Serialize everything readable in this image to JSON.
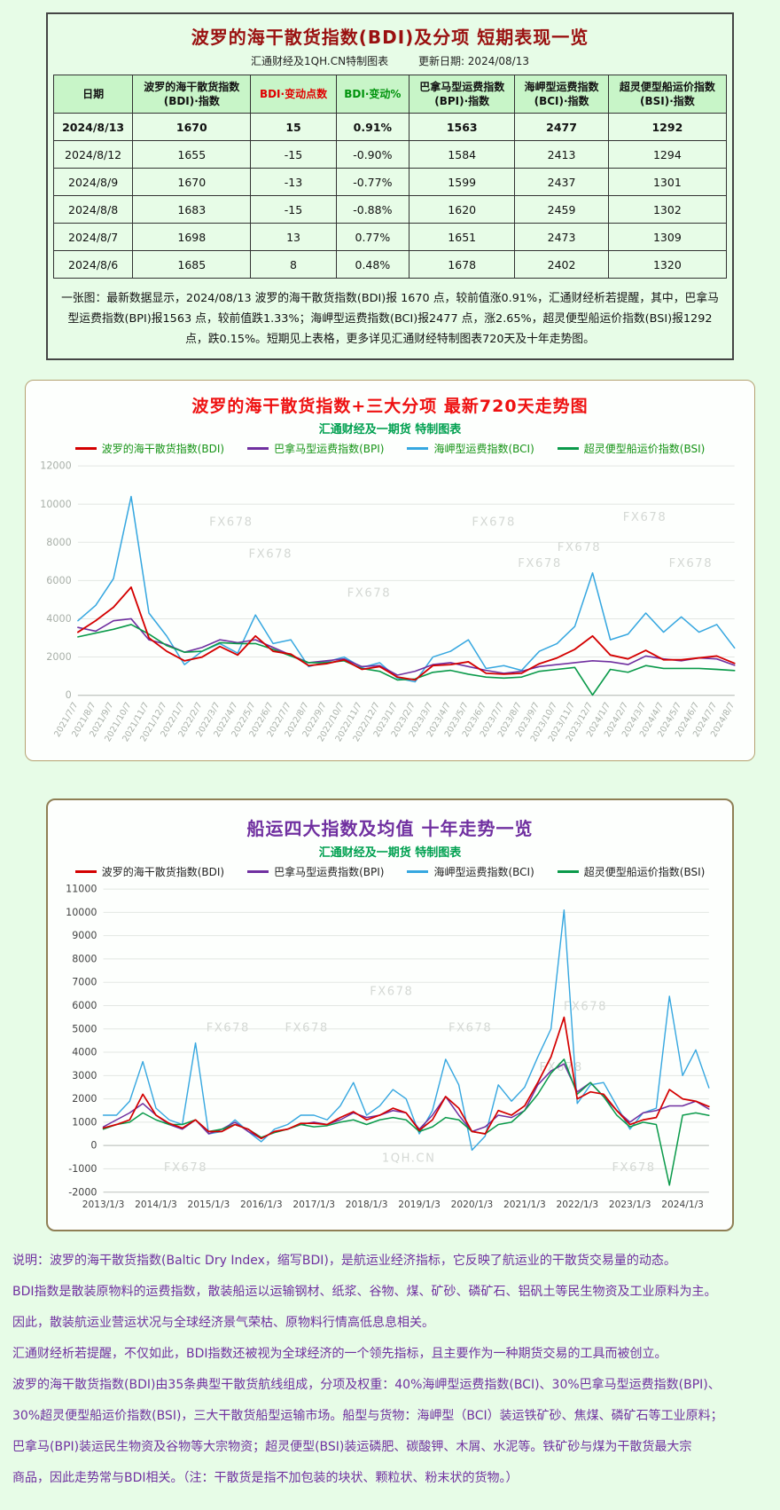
{
  "header": {
    "title": "波罗的海干散货指数(BDI)及分项 短期表现一览",
    "source": "汇通财经及1QH.CN特制图表",
    "updated": "更新日期: 2024/08/13"
  },
  "table": {
    "columns": [
      "日期",
      "波罗的海干散货指数\n(BDI)·指数",
      "BDI·变动点数",
      "BDI·变动%",
      "巴拿马型运费指数\n(BPI)·指数",
      "海岬型运费指数\n(BCI)·指数",
      "超灵便型船运价指数\n(BSI)·指数"
    ],
    "rows": [
      [
        "2024/8/13",
        "1670",
        "15",
        "0.91%",
        "1563",
        "2477",
        "1292"
      ],
      [
        "2024/8/12",
        "1655",
        "-15",
        "-0.90%",
        "1584",
        "2413",
        "1294"
      ],
      [
        "2024/8/9",
        "1670",
        "-13",
        "-0.77%",
        "1599",
        "2437",
        "1301"
      ],
      [
        "2024/8/8",
        "1683",
        "-15",
        "-0.88%",
        "1620",
        "2459",
        "1302"
      ],
      [
        "2024/8/7",
        "1698",
        "13",
        "0.77%",
        "1651",
        "2473",
        "1309"
      ],
      [
        "2024/8/6",
        "1685",
        "8",
        "0.48%",
        "1678",
        "2402",
        "1320"
      ]
    ],
    "note": "一张图：最新数据显示，2024/08/13 波罗的海干散货指数(BDI)报 1670 点，较前值涨0.91%，汇通财经析若提醒，其中，巴拿马型运费指数(BPI)报1563 点，较前值跌1.33%；海岬型运费指数(BCI)报2477 点，涨2.65%，超灵便型船运价指数(BSI)报1292 点，跌0.15%。短期见上表格，更多详见汇通财经特制图表720天及十年走势图。"
  },
  "chart_data": [
    {
      "type": "line",
      "title": "波罗的海干散货指数+三大分项 最新720天走势图",
      "subtitle": "汇通财经及一期货 特制图表",
      "ylim": [
        0,
        12000
      ],
      "ystep": 2000,
      "grid": true,
      "legend_position": "top",
      "rotate_x": true,
      "axis_color": "#a9b0a9",
      "x": [
        "2021/7/7",
        "2021/8/7",
        "2021/9/7",
        "2021/10/7",
        "2021/11/7",
        "2021/12/7",
        "2022/1/7",
        "2022/2/7",
        "2022/3/7",
        "2022/4/7",
        "2022/5/7",
        "2022/6/7",
        "2022/7/7",
        "2022/8/7",
        "2022/9/7",
        "2022/10/7",
        "2022/11/7",
        "2022/12/7",
        "2023/1/7",
        "2023/2/7",
        "2023/3/7",
        "2023/4/7",
        "2023/5/7",
        "2023/6/7",
        "2023/7/7",
        "2023/8/7",
        "2023/9/7",
        "2023/10/7",
        "2023/11/7",
        "2023/12/7",
        "2024/1/7",
        "2024/2/7",
        "2024/3/7",
        "2024/4/7",
        "2024/5/7",
        "2024/6/7",
        "2024/7/7",
        "2024/8/7"
      ],
      "draw_order": [
        2,
        1,
        3,
        0
      ],
      "series": [
        {
          "name": "波罗的海干散货指数(BDI)",
          "color": "#d40000",
          "width": 1.8,
          "values": [
            3300,
            3900,
            4600,
            5650,
            3000,
            2300,
            1800,
            2000,
            2550,
            2100,
            3100,
            2300,
            2150,
            1550,
            1650,
            1850,
            1350,
            1500,
            950,
            800,
            1550,
            1600,
            1750,
            1150,
            1100,
            1150,
            1650,
            1950,
            2400,
            3100,
            2100,
            1900,
            2350,
            1850,
            1850,
            1950,
            2050,
            1670
          ]
        },
        {
          "name": "巴拿马型运费指数(BPI)",
          "color": "#7030a0",
          "width": 1.6,
          "values": [
            3550,
            3350,
            3900,
            4000,
            2900,
            2650,
            2250,
            2500,
            2900,
            2750,
            2900,
            2500,
            2100,
            1700,
            1800,
            1900,
            1500,
            1550,
            1050,
            1250,
            1600,
            1700,
            1500,
            1300,
            1150,
            1250,
            1500,
            1600,
            1700,
            1800,
            1750,
            1600,
            2050,
            1900,
            1800,
            1950,
            1900,
            1563
          ]
        },
        {
          "name": "海岬型运费指数(BCI)",
          "color": "#36a7e0",
          "width": 1.5,
          "values": [
            3900,
            4700,
            6100,
            10400,
            4300,
            3100,
            1600,
            2300,
            2700,
            2200,
            4200,
            2700,
            2900,
            1500,
            1750,
            2000,
            1450,
            1700,
            900,
            700,
            2000,
            2300,
            2900,
            1400,
            1550,
            1300,
            2300,
            2700,
            3600,
            6400,
            2900,
            3200,
            4300,
            3300,
            4100,
            3300,
            3700,
            2477
          ]
        },
        {
          "name": "超灵便型船运价指数(BSI)",
          "color": "#0a9a4a",
          "width": 1.6,
          "values": [
            3050,
            3250,
            3450,
            3700,
            3200,
            2600,
            2250,
            2300,
            2750,
            2700,
            2700,
            2400,
            2050,
            1700,
            1700,
            1800,
            1400,
            1250,
            800,
            850,
            1200,
            1300,
            1100,
            950,
            900,
            950,
            1250,
            1350,
            1450,
            10,
            1350,
            1200,
            1550,
            1400,
            1400,
            1400,
            1350,
            1292
          ]
        }
      ],
      "watermarks": [
        {
          "text": "FX678",
          "x": 0.2,
          "y": 0.26
        },
        {
          "text": "FX678",
          "x": 0.6,
          "y": 0.26
        },
        {
          "text": "FX678",
          "x": 0.83,
          "y": 0.24
        },
        {
          "text": "FX678",
          "x": 0.26,
          "y": 0.4
        },
        {
          "text": "FX678",
          "x": 0.41,
          "y": 0.57
        },
        {
          "text": "FX678",
          "x": 0.67,
          "y": 0.44
        },
        {
          "text": "FX678",
          "x": 0.9,
          "y": 0.44
        },
        {
          "text": "FX678",
          "x": 0.73,
          "y": 0.37
        }
      ]
    },
    {
      "type": "line",
      "title": "船运四大指数及均值 十年走势一览",
      "subtitle": "汇通财经及一期货 特制图表",
      "ylim": [
        -2000,
        11000
      ],
      "ystep": 1000,
      "grid": true,
      "legend_position": "top",
      "rotate_x": false,
      "axis_color": "#444444",
      "points_per_tick": 4,
      "x_ticks": [
        "2013/1/3",
        "2014/1/3",
        "2015/1/3",
        "2016/1/3",
        "2017/1/3",
        "2018/1/3",
        "2019/1/3",
        "2020/1/3",
        "2021/1/3",
        "2022/1/3",
        "2023/1/3",
        "2024/1/3"
      ],
      "draw_order": [
        2,
        1,
        3,
        0
      ],
      "series": [
        {
          "name": "波罗的海干散货指数(BDI)",
          "color": "#d40000",
          "width": 1.7,
          "values": [
            750,
            900,
            1100,
            2200,
            1300,
            950,
            750,
            1100,
            600,
            600,
            900,
            700,
            300,
            600,
            700,
            950,
            950,
            900,
            1200,
            1450,
            1100,
            1300,
            1600,
            1400,
            650,
            1100,
            2100,
            1600,
            600,
            500,
            1500,
            1300,
            1700,
            2700,
            3800,
            5500,
            2000,
            2300,
            2200,
            1500,
            900,
            1100,
            1200,
            2400,
            2000,
            1900,
            1670
          ]
        },
        {
          "name": "巴拿马型运费指数(BPI)",
          "color": "#7030a0",
          "width": 1.5,
          "values": [
            800,
            1100,
            1400,
            1800,
            1300,
            900,
            700,
            1100,
            500,
            700,
            1000,
            600,
            300,
            600,
            700,
            900,
            1000,
            900,
            1100,
            1400,
            1200,
            1300,
            1500,
            1400,
            700,
            1300,
            2100,
            1300,
            600,
            800,
            1300,
            1200,
            1500,
            2600,
            3200,
            3500,
            2300,
            2700,
            2100,
            1500,
            1000,
            1400,
            1500,
            1700,
            1700,
            1900,
            1563
          ]
        },
        {
          "name": "海岬型运费指数(BCI)",
          "color": "#36a7e0",
          "width": 1.4,
          "values": [
            1300,
            1300,
            1900,
            3600,
            1600,
            1100,
            900,
            4400,
            500,
            600,
            1100,
            600,
            160,
            700,
            900,
            1300,
            1300,
            1100,
            1700,
            2700,
            1300,
            1700,
            2400,
            2000,
            500,
            1500,
            3700,
            2600,
            -200,
            400,
            2600,
            1900,
            2500,
            3800,
            5000,
            10100,
            1800,
            2600,
            2700,
            1700,
            700,
            1400,
            1600,
            6400,
            3000,
            4100,
            2477
          ]
        },
        {
          "name": "超灵便型船运价指数(BSI)",
          "color": "#0a9a4a",
          "width": 1.5,
          "values": [
            700,
            900,
            1000,
            1400,
            1100,
            900,
            900,
            1100,
            600,
            700,
            900,
            700,
            350,
            550,
            700,
            900,
            800,
            850,
            1000,
            1100,
            900,
            1100,
            1200,
            1100,
            600,
            800,
            1200,
            1100,
            600,
            500,
            900,
            1000,
            1500,
            2200,
            3100,
            3700,
            2200,
            2700,
            2100,
            1300,
            800,
            1000,
            900,
            -1700,
            1300,
            1400,
            1292
          ]
        }
      ],
      "watermarks": [
        {
          "text": "FX678",
          "x": 0.17,
          "y": 0.47
        },
        {
          "text": "FX678",
          "x": 0.3,
          "y": 0.47
        },
        {
          "text": "FX678",
          "x": 0.44,
          "y": 0.35
        },
        {
          "text": "FX678",
          "x": 0.57,
          "y": 0.47
        },
        {
          "text": "FX678",
          "x": 0.76,
          "y": 0.4
        },
        {
          "text": "FX678",
          "x": 0.72,
          "y": 0.6
        },
        {
          "text": "FX678",
          "x": 0.1,
          "y": 0.93
        },
        {
          "text": "1QH.CN",
          "x": 0.46,
          "y": 0.9
        },
        {
          "text": "FX678",
          "x": 0.84,
          "y": 0.93
        }
      ]
    }
  ],
  "footer": {
    "lines": [
      "说明：波罗的海干散货指数(Baltic Dry Index，缩写BDI)，是航运业经济指标，它反映了航运业的干散货交易量的动态。",
      "BDI指数是散装原物料的运费指数，散装船运以运输钢材、纸浆、谷物、煤、矿砂、磷矿石、铝矾土等民生物资及工业原料为主。",
      "因此，散装航运业营运状况与全球经济景气荣枯、原物料行情高低息息相关。",
      "汇通财经析若提醒，不仅如此，BDI指数还被视为全球经济的一个领先指标，且主要作为一种期货交易的工具而被创立。",
      "波罗的海干散货指数(BDI)由35条典型干散货航线组成，分项及权重：40%海岬型运费指数(BCI)、30%巴拿马型运费指数(BPI)、",
      "30%超灵便型船运价指数(BSI)，三大干散货船型运输市场。船型与货物：海岬型（BCI）装运铁矿砂、焦煤、磷矿石等工业原料；",
      "巴拿马(BPI)装运民生物资及谷物等大宗物资；超灵便型(BSI)装运磷肥、碳酸钾、木屑、水泥等。铁矿砂与煤为干散货最大宗",
      "商品，因此走势常与BDI相关。（注：干散货是指不加包装的块状、颗粒状、粉末状的货物。）"
    ]
  },
  "colors": {
    "page_bg": "#e7fce7",
    "table_header_bg": "#c8f5c8",
    "title_red": "#9a1010",
    "chart1_title": "#ee1111",
    "chart2_title": "#7030a0",
    "subtitle_green": "#00a050",
    "footer_purple": "#7030a0",
    "bdi_line": "#d40000",
    "bpi_line": "#7030a0",
    "bci_line": "#36a7e0",
    "bsi_line": "#0a9a4a"
  }
}
